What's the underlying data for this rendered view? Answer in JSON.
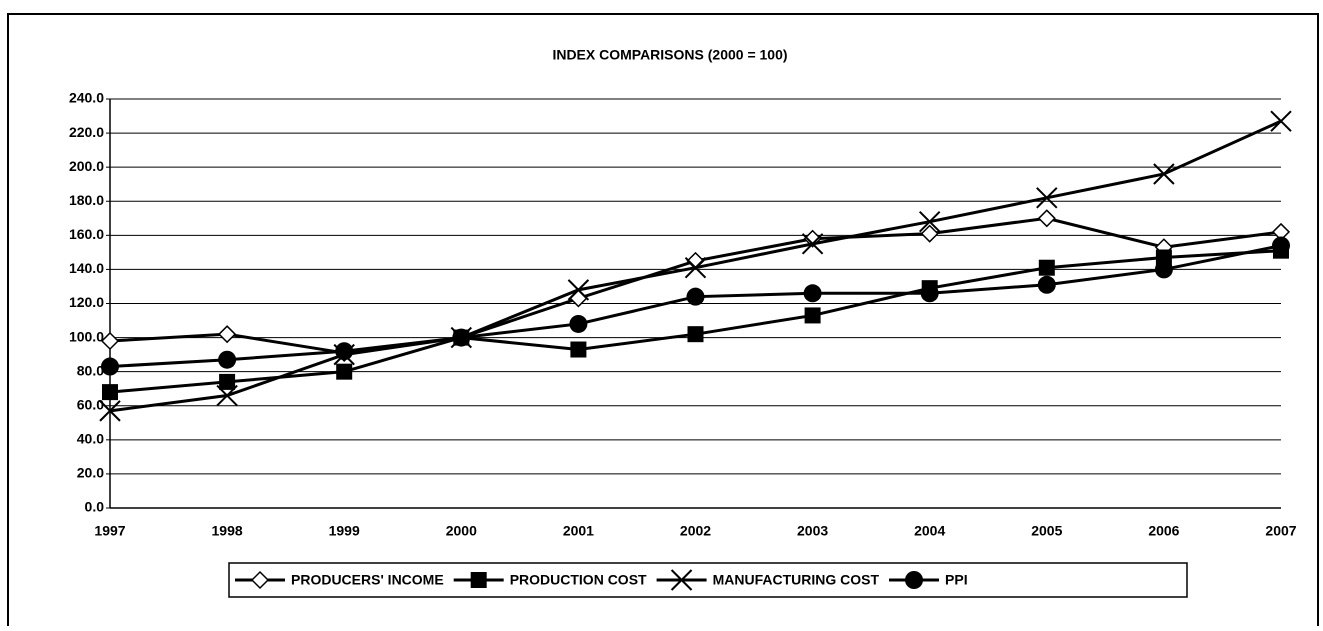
{
  "chart_data": {
    "type": "line",
    "title": "INDEX COMPARISONS (2000 = 100)",
    "categories": [
      "1997",
      "1998",
      "1999",
      "2000",
      "2001",
      "2002",
      "2003",
      "2004",
      "2005",
      "2006",
      "2007"
    ],
    "series": [
      {
        "name": "PRODUCERS' INCOME",
        "color": "#000000",
        "marker": "diamond",
        "values": [
          98,
          102,
          91,
          100,
          123,
          145,
          158,
          161,
          170,
          153,
          162
        ]
      },
      {
        "name": "PRODUCTION COST",
        "color": "#000000",
        "marker": "square",
        "values": [
          68,
          74,
          80,
          100,
          93,
          102,
          113,
          129,
          141,
          147,
          151
        ]
      },
      {
        "name": "MANUFACTURING COST",
        "color": "#000000",
        "marker": "x",
        "values": [
          57,
          66,
          90,
          100,
          128,
          141,
          155,
          168,
          182,
          196,
          227
        ]
      },
      {
        "name": "PPI",
        "color": "#000000",
        "marker": "circle",
        "values": [
          83,
          87,
          92,
          100,
          108,
          124,
          126,
          126,
          131,
          140,
          154
        ]
      }
    ],
    "ylim": [
      0,
      240
    ],
    "yticks": [
      {
        "value": 0,
        "label": "0.0"
      },
      {
        "value": 20,
        "label": "20.0"
      },
      {
        "value": 40,
        "label": "40.0"
      },
      {
        "value": 60,
        "label": "60.0"
      },
      {
        "value": 80,
        "label": "80.0"
      },
      {
        "value": 100,
        "label": "100.0"
      },
      {
        "value": 120,
        "label": "120.0"
      },
      {
        "value": 140,
        "label": "140.0"
      },
      {
        "value": 160,
        "label": "160.0"
      },
      {
        "value": 180,
        "label": "180.0"
      },
      {
        "value": 200,
        "label": "200.0"
      },
      {
        "value": 220,
        "label": "220.0"
      },
      {
        "value": 240,
        "label": "240.0"
      }
    ],
    "grid": true,
    "legend": "bottom"
  }
}
